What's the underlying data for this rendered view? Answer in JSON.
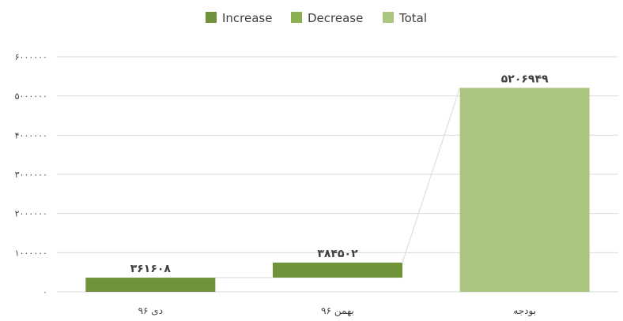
{
  "legend": [
    {
      "label": "Increase",
      "color": "#70923a"
    },
    {
      "label": "Decrease",
      "color": "#8cb050"
    },
    {
      "label": "Total",
      "color": "#aac681"
    }
  ],
  "chart_data": {
    "type": "waterfall",
    "categories": [
      "دی ۹۶",
      "بهمن ۹۶",
      "بودجه"
    ],
    "series": [
      {
        "name": "Increase",
        "values": [
          361608,
          384502,
          null
        ]
      },
      {
        "name": "Total",
        "values": [
          null,
          null,
          5206949
        ]
      }
    ],
    "data_labels": [
      "۳۶۱۶۰۸",
      "۳۸۴۵۰۲",
      "۵۲۰۶۹۴۹"
    ],
    "ylim": [
      0,
      6000000
    ],
    "y_ticks": [
      0,
      1000000,
      2000000,
      3000000,
      4000000,
      5000000,
      6000000
    ],
    "y_tick_labels": [
      "۰",
      "۱۰۰۰۰۰۰",
      "۲۰۰۰۰۰۰",
      "۳۰۰۰۰۰۰",
      "۴۰۰۰۰۰۰",
      "۵۰۰۰۰۰۰",
      "۶۰۰۰۰۰۰"
    ],
    "grid": true,
    "legend_position": "top",
    "colors": {
      "increase": "#70923a",
      "total": "#aac681",
      "grid": "#d9d9d9",
      "connector": "#d9d9d9"
    }
  }
}
